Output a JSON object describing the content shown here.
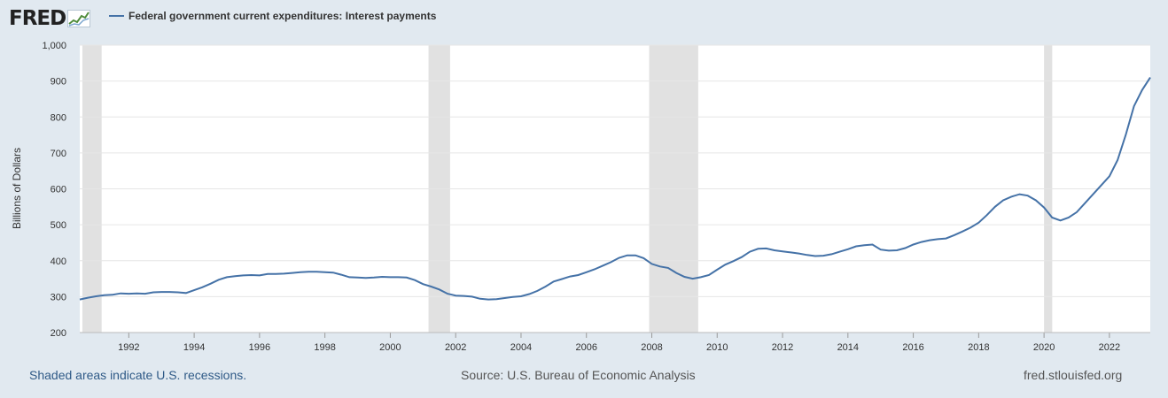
{
  "logo": {
    "text": "FRED"
  },
  "legend": {
    "series_name": "Federal government current expenditures: Interest payments",
    "color": "#4572a7"
  },
  "footer": {
    "left": "Shaded areas indicate U.S. recessions.",
    "middle": "Source: U.S. Bureau of Economic Analysis",
    "right": "fred.stlouisfed.org"
  },
  "chart_data": {
    "type": "line",
    "ylabel": "Billions of Dollars",
    "ylim": [
      200,
      1000
    ],
    "yticks": [
      200,
      300,
      400,
      500,
      600,
      700,
      800,
      900,
      1000
    ],
    "ytick_labels": [
      "200",
      "300",
      "400",
      "500",
      "600",
      "700",
      "800",
      "900",
      "1,000"
    ],
    "xlim": [
      1990.5,
      2023.25
    ],
    "xticks": [
      1992,
      1994,
      1996,
      1998,
      2000,
      2002,
      2004,
      2006,
      2008,
      2010,
      2012,
      2014,
      2016,
      2018,
      2020,
      2022
    ],
    "grid": true,
    "recessions": [
      [
        1990.58,
        1991.17
      ],
      [
        2001.17,
        2001.83
      ],
      [
        2007.92,
        2009.42
      ],
      [
        2020.0,
        2020.25
      ]
    ],
    "recession_color": "#e1e1e1",
    "line_color": "#4572a7",
    "series": [
      {
        "name": "Federal government current expenditures: Interest payments",
        "x": [
          1990.5,
          1990.75,
          1991.0,
          1991.25,
          1991.5,
          1991.75,
          1992.0,
          1992.25,
          1992.5,
          1992.75,
          1993.0,
          1993.25,
          1993.5,
          1993.75,
          1994.0,
          1994.25,
          1994.5,
          1994.75,
          1995.0,
          1995.25,
          1995.5,
          1995.75,
          1996.0,
          1996.25,
          1996.5,
          1996.75,
          1997.0,
          1997.25,
          1997.5,
          1997.75,
          1998.0,
          1998.25,
          1998.5,
          1998.75,
          1999.0,
          1999.25,
          1999.5,
          1999.75,
          2000.0,
          2000.25,
          2000.5,
          2000.75,
          2001.0,
          2001.25,
          2001.5,
          2001.75,
          2002.0,
          2002.25,
          2002.5,
          2002.75,
          2003.0,
          2003.25,
          2003.5,
          2003.75,
          2004.0,
          2004.25,
          2004.5,
          2004.75,
          2005.0,
          2005.25,
          2005.5,
          2005.75,
          2006.0,
          2006.25,
          2006.5,
          2006.75,
          2007.0,
          2007.25,
          2007.5,
          2007.75,
          2008.0,
          2008.25,
          2008.5,
          2008.75,
          2009.0,
          2009.25,
          2009.5,
          2009.75,
          2010.0,
          2010.25,
          2010.5,
          2010.75,
          2011.0,
          2011.25,
          2011.5,
          2011.75,
          2012.0,
          2012.25,
          2012.5,
          2012.75,
          2013.0,
          2013.25,
          2013.5,
          2013.75,
          2014.0,
          2014.25,
          2014.5,
          2014.75,
          2015.0,
          2015.25,
          2015.5,
          2015.75,
          2016.0,
          2016.25,
          2016.5,
          2016.75,
          2017.0,
          2017.25,
          2017.5,
          2017.75,
          2018.0,
          2018.25,
          2018.5,
          2018.75,
          2019.0,
          2019.25,
          2019.5,
          2019.75,
          2020.0,
          2020.25,
          2020.5,
          2020.75,
          2021.0,
          2021.25,
          2021.5,
          2021.75,
          2022.0,
          2022.25,
          2022.5,
          2022.75,
          2023.0,
          2023.25
        ],
        "values": [
          292,
          297,
          301,
          304,
          305,
          309,
          308,
          309,
          308,
          312,
          313,
          313,
          312,
          310,
          318,
          326,
          336,
          347,
          354,
          357,
          359,
          360,
          359,
          363,
          363,
          364,
          366,
          368,
          369,
          369,
          368,
          367,
          361,
          354,
          353,
          352,
          353,
          355,
          354,
          354,
          353,
          346,
          335,
          328,
          320,
          308,
          303,
          302,
          300,
          294,
          292,
          293,
          296,
          299,
          301,
          307,
          316,
          328,
          342,
          349,
          356,
          360,
          368,
          376,
          386,
          396,
          408,
          415,
          415,
          407,
          391,
          384,
          380,
          366,
          355,
          350,
          354,
          360,
          375,
          389,
          399,
          410,
          425,
          433,
          434,
          429,
          426,
          423,
          420,
          416,
          413,
          414,
          418,
          425,
          432,
          440,
          443,
          445,
          431,
          428,
          429,
          435,
          445,
          452,
          457,
          460,
          462,
          471,
          481,
          492,
          506,
          527,
          550,
          568,
          578,
          585,
          581,
          568,
          548,
          520,
          512,
          520,
          535,
          560,
          585,
          610,
          635,
          680,
          750,
          830,
          875,
          910
        ]
      }
    ]
  }
}
